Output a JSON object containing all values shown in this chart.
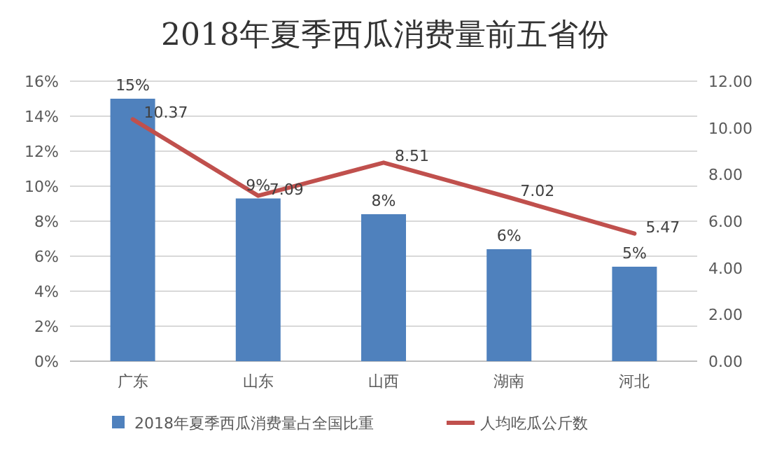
{
  "chart_data": {
    "type": "bar",
    "title": "2018年夏季西瓜消费量前五省份",
    "categories": [
      "广东",
      "山东",
      "山西",
      "湖南",
      "河北"
    ],
    "series": [
      {
        "name": "2018年夏季西瓜消费量占全国比重",
        "color": "#4f81bd",
        "values": [
          15,
          9.3,
          8.4,
          6.4,
          5.4
        ],
        "value_labels": [
          "15%",
          "9%",
          "8%",
          "6%",
          "5%"
        ]
      },
      {
        "name": "人均吃瓜公斤数",
        "type": "line",
        "axis": "y2",
        "color": "#c0504d",
        "values": [
          10.37,
          7.09,
          8.51,
          7.02,
          5.47
        ],
        "value_labels": [
          "10.37",
          "7.09",
          "8.51",
          "7.02",
          "5.47"
        ]
      }
    ],
    "ylim": [
      0,
      16
    ],
    "yticks": [
      {
        "value": 0,
        "label": "0%"
      },
      {
        "value": 2,
        "label": "2%"
      },
      {
        "value": 4,
        "label": "4%"
      },
      {
        "value": 6,
        "label": "6%"
      },
      {
        "value": 8,
        "label": "8%"
      },
      {
        "value": 10,
        "label": "10%"
      },
      {
        "value": 12,
        "label": "12%"
      },
      {
        "value": 14,
        "label": "14%"
      },
      {
        "value": 16,
        "label": "16%"
      }
    ],
    "y2lim": [
      0,
      12
    ],
    "y2ticks": [
      {
        "value": 0,
        "label": "0.00"
      },
      {
        "value": 2,
        "label": "2.00"
      },
      {
        "value": 4,
        "label": "4.00"
      },
      {
        "value": 6,
        "label": "6.00"
      },
      {
        "value": 8,
        "label": "8.00"
      },
      {
        "value": 10,
        "label": "10.00"
      },
      {
        "value": 12,
        "label": "12.00"
      }
    ],
    "grid": "y",
    "legend": "bottom"
  }
}
